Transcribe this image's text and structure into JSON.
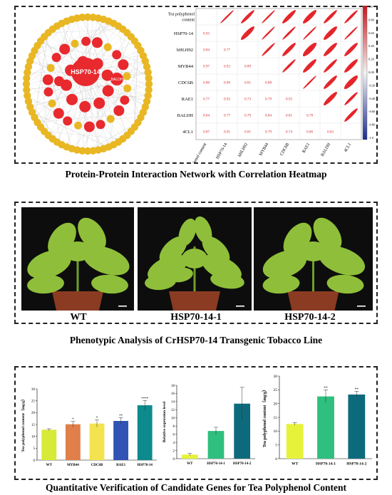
{
  "captions": {
    "panel_a": "Protein-Protein Interaction Network with Correlation Heatmap",
    "panel_b": "Phenotypic Analysis of CrHSP70-14 Transgenic Tobacco Line",
    "panel_c": "Quantitative Verification of Candidate Genes for Tea Polyphenol Content"
  },
  "network": {
    "hub_label": "HSP70-14",
    "secondary_label": "BALDH",
    "colors": {
      "high": "#e8292e",
      "low": "#e8b723",
      "edge": "#b8b8b8"
    }
  },
  "phenotype": {
    "labels": [
      "WT",
      "HSP70-14-1",
      "HSP70-14-2"
    ],
    "colors": {
      "background": "#0d0d0d",
      "leaf": "#8fbf3a",
      "pot": "#8a3b22"
    }
  },
  "chart_data": [
    {
      "type": "heatmap",
      "title": "",
      "rows": [
        "Tea polyphenol content",
        "HSP70-14",
        "bHLH92",
        "MYB44",
        "CDC6B",
        "RAE1",
        "BALDH",
        "4CL1"
      ],
      "columns": [
        "Tea polyphenol content",
        "HSP70-14",
        "bHLH92",
        "MYB44",
        "CDC6B",
        "RAE1",
        "BALDH",
        "4CL1"
      ],
      "lower_values": [
        [
          "",
          "",
          "",
          "",
          "",
          "",
          "",
          ""
        ],
        [
          "0.93",
          "",
          "",
          "",
          "",
          "",
          "",
          ""
        ],
        [
          "0.84",
          "0.77",
          "",
          "",
          "",
          "",
          "",
          ""
        ],
        [
          "0.97",
          "0.92",
          "0.89",
          "",
          "",
          "",
          "",
          ""
        ],
        [
          "0.80",
          "0.89",
          "0.81",
          "0.88",
          "",
          "",
          "",
          ""
        ],
        [
          "0.77",
          "0.92",
          "0.73",
          "0.79",
          "0.93",
          "",
          "",
          ""
        ],
        [
          "0.84",
          "0.77",
          "0.79",
          "0.84",
          "0.81",
          "0.78",
          "",
          ""
        ],
        [
          "0.87",
          "0.91",
          "0.81",
          "0.79",
          "0.74",
          "0.86",
          "0.83",
          ""
        ]
      ],
      "colorbar_ticks": [
        "1.0",
        "0.80",
        "0.60",
        "0.40",
        "0.20",
        "0.00",
        "-0.20",
        "-0.40",
        "-0.60",
        "-0.80",
        "-1.0"
      ],
      "colors": {
        "positive": "#e4262b",
        "negative": "#1b2b8f",
        "neutral": "#f2f2f2"
      }
    },
    {
      "type": "bar",
      "ylabel": "Tea polyphenol content（mg/g）",
      "categories": [
        "WT",
        "MYB44",
        "CDC6B",
        "RAE1",
        "HSP70-14"
      ],
      "values": [
        12.8,
        15.1,
        15.4,
        16.5,
        23.1
      ],
      "errors": [
        0.4,
        1.2,
        1.5,
        1.4,
        2.0
      ],
      "significance": [
        "",
        "*",
        "*",
        "**",
        "****"
      ],
      "ylim": [
        0,
        30
      ],
      "yticks": [
        "0",
        "5",
        "10",
        "15",
        "20",
        "25",
        "30"
      ],
      "colors": [
        "#d7ea38",
        "#e07f4a",
        "#f3e34e",
        "#2f54b5",
        "#0c8a8c"
      ]
    },
    {
      "type": "bar",
      "ylabel": "Relative expression level",
      "categories": [
        "WT",
        "HSP70-14-1",
        "HSP70-14-2"
      ],
      "values": [
        1.0,
        6.8,
        13.5
      ],
      "errors": [
        0.3,
        0.9,
        4.0
      ],
      "significance": [
        "",
        "",
        ""
      ],
      "ylim": [
        0,
        18
      ],
      "yticks": [
        "0",
        "2",
        "4",
        "6",
        "8",
        "10",
        "12",
        "14",
        "16",
        "18"
      ],
      "colors": [
        "#e6f23a",
        "#2fbf7e",
        "#0d6a7d"
      ]
    },
    {
      "type": "bar",
      "ylabel": "Tea polyphenol content（mg/g）",
      "categories": [
        "WT",
        "HSP70-14-1",
        "HSP70-14-2"
      ],
      "values": [
        12.6,
        22.6,
        23.3
      ],
      "errors": [
        0.5,
        2.4,
        1.2
      ],
      "significance": [
        "",
        "**",
        "**"
      ],
      "ylim": [
        0,
        30
      ],
      "yticks": [
        "0",
        "5",
        "10",
        "15",
        "20",
        "25",
        "30"
      ],
      "colors": [
        "#e6f23a",
        "#2fbf7e",
        "#0d6a7d"
      ]
    }
  ]
}
